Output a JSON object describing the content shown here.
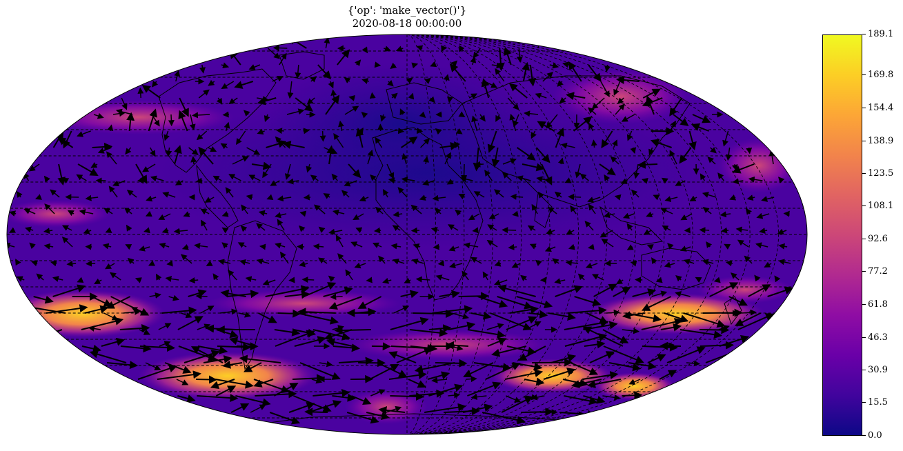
{
  "title": {
    "line1": "{'op': 'make_vector()'}",
    "line2": "2020-08-18 00:00:00"
  },
  "map": {
    "projection": "mollweide",
    "colormap": "plasma",
    "features": [
      "coastlines",
      "country-borders",
      "graticule",
      "wind-vector-arrows"
    ]
  },
  "colorbar": {
    "min": 0.0,
    "max": 189.1,
    "ticks": [
      "0.0",
      "15.5",
      "30.9",
      "46.3",
      "61.8",
      "77.2",
      "92.6",
      "108.1",
      "123.5",
      "138.9",
      "154.4",
      "169.8",
      "189.1"
    ],
    "tick_values": [
      0.0,
      15.5,
      30.9,
      46.3,
      61.8,
      77.2,
      92.6,
      108.1,
      123.5,
      138.9,
      154.4,
      169.8,
      189.1
    ]
  }
}
